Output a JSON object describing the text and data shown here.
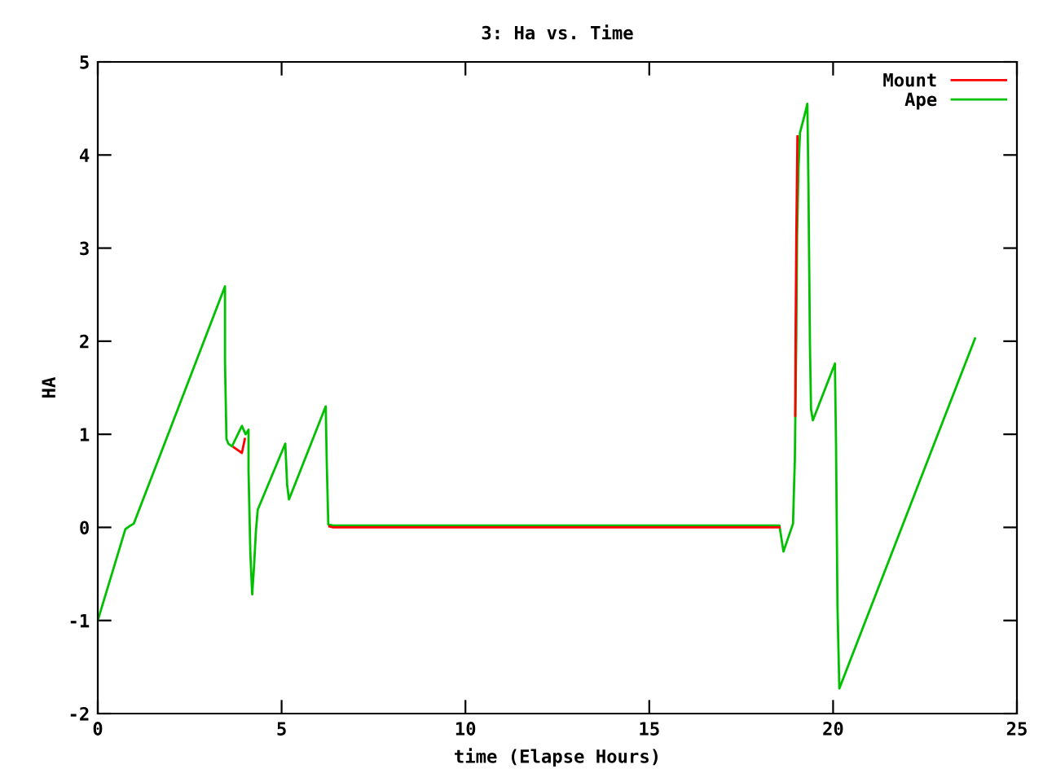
{
  "chart_data": {
    "type": "line",
    "title": "3: Ha vs. Time",
    "xlabel": "time (Elapse Hours)",
    "ylabel": "HA",
    "xlim": [
      0,
      25
    ],
    "xticks": [
      0,
      5,
      10,
      15,
      20,
      25
    ],
    "ylim": [
      -2,
      5
    ],
    "yticks": [
      -2,
      -1,
      0,
      1,
      2,
      3,
      4,
      5
    ],
    "grid": false,
    "legend": "top right",
    "marker": "none",
    "line_style": "solid",
    "series": [
      {
        "name": "Mount",
        "color": "#ff0000",
        "x": [
          3.7,
          3.92,
          4.0,
          null,
          6.3,
          6.4,
          18.54,
          null,
          18.97,
          18.98,
          19.0,
          19.03
        ],
        "values": [
          0.86,
          0.8,
          0.95,
          null,
          0.01,
          0.0,
          0.0,
          null,
          1.2,
          2.08,
          3.13,
          4.2
        ]
      },
      {
        "name": "Ape",
        "color": "#00c000",
        "x": [
          0,
          0.75,
          0.89,
          0.98,
          3.46,
          3.46,
          3.5,
          3.55,
          3.65,
          3.92,
          4.02,
          4.1,
          4.1,
          4.15,
          4.2,
          4.25,
          4.3,
          4.35,
          5.1,
          5.15,
          5.2,
          6.2,
          6.23,
          6.27,
          6.4,
          18.54,
          18.65,
          18.91,
          18.96,
          19.0,
          19.02,
          19.06,
          19.1,
          19.2,
          19.27,
          19.3,
          19.33,
          19.37,
          19.4,
          19.45,
          20.05,
          20.08,
          20.12,
          20.17,
          23.86
        ],
        "values": [
          -1.0,
          -0.02,
          0.02,
          0.04,
          2.59,
          1.78,
          0.95,
          0.9,
          0.87,
          1.09,
          1.0,
          1.05,
          0.61,
          -0.28,
          -0.72,
          -0.42,
          -0.05,
          0.19,
          0.9,
          0.46,
          0.3,
          1.3,
          0.66,
          0.03,
          0.02,
          0.02,
          -0.26,
          0.04,
          0.74,
          2.08,
          3.13,
          3.87,
          4.24,
          4.39,
          4.5,
          4.55,
          3.66,
          1.97,
          1.27,
          1.15,
          1.76,
          0.89,
          -0.86,
          -1.73,
          2.03
        ]
      }
    ]
  }
}
